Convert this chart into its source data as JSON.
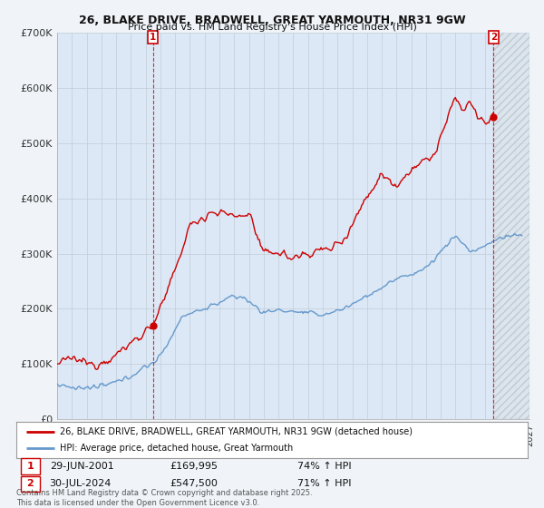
{
  "title_line1": "26, BLAKE DRIVE, BRADWELL, GREAT YARMOUTH, NR31 9GW",
  "title_line2": "Price paid vs. HM Land Registry's House Price Index (HPI)",
  "background_color": "#f0f4f8",
  "plot_bg_color": "#dce8f5",
  "hatch_color": "#c0c8d0",
  "red_color": "#cc0000",
  "blue_color": "#6699cc",
  "annotation1_date": "29-JUN-2001",
  "annotation1_price": "£169,995",
  "annotation1_hpi": "74% ↑ HPI",
  "annotation2_date": "30-JUL-2024",
  "annotation2_price": "£547,500",
  "annotation2_hpi": "71% ↑ HPI",
  "legend_line1": "26, BLAKE DRIVE, BRADWELL, GREAT YARMOUTH, NR31 9GW (detached house)",
  "legend_line2": "HPI: Average price, detached house, Great Yarmouth",
  "footer": "Contains HM Land Registry data © Crown copyright and database right 2025.\nThis data is licensed under the Open Government Licence v3.0.",
  "ylim": [
    0,
    700000
  ],
  "yticks": [
    0,
    100000,
    200000,
    300000,
    400000,
    500000,
    600000,
    700000
  ],
  "ytick_labels": [
    "£0",
    "£100K",
    "£200K",
    "£300K",
    "£400K",
    "£500K",
    "£600K",
    "£700K"
  ],
  "xmin": 1995.0,
  "xmax": 2027.0,
  "sale1_x": 2001.49,
  "sale1_y": 169995,
  "sale2_x": 2024.58,
  "sale2_y": 547500,
  "hatch_start": 2024.58
}
